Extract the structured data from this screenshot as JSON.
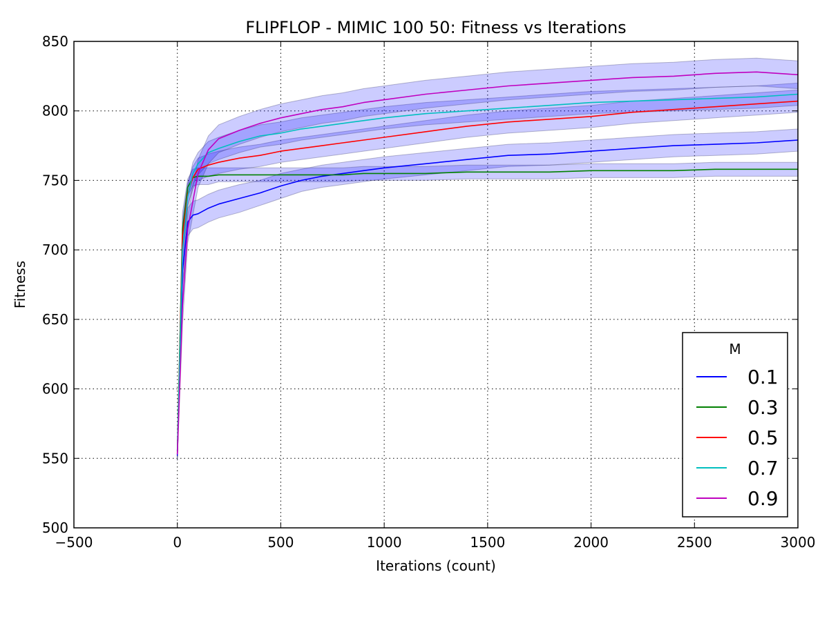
{
  "chart_data": {
    "type": "line",
    "title": "FLIPFLOP - MIMIC 100 50: Fitness vs Iterations",
    "xlabel": "Iterations (count)",
    "ylabel": "Fitness",
    "xlim": [
      -500,
      3000
    ],
    "ylim": [
      500,
      850
    ],
    "xticks": [
      -500,
      0,
      500,
      1000,
      1500,
      2000,
      2500,
      3000
    ],
    "xtick_labels": [
      "−500",
      "0",
      "500",
      "1000",
      "1500",
      "2000",
      "2500",
      "3000"
    ],
    "yticks": [
      500,
      550,
      600,
      650,
      700,
      750,
      800,
      850
    ],
    "ytick_labels": [
      "500",
      "550",
      "600",
      "650",
      "700",
      "750",
      "800",
      "850"
    ],
    "grid": true,
    "legend": {
      "title": "M",
      "position": "lower-right"
    },
    "band_color": "#0000ff",
    "series": [
      {
        "name": "0.1",
        "color": "#0000ff",
        "x": [
          0,
          25,
          50,
          75,
          100,
          150,
          200,
          300,
          400,
          500,
          600,
          700,
          800,
          900,
          1000,
          1200,
          1400,
          1600,
          1800,
          2000,
          2200,
          2400,
          2600,
          2800,
          3000
        ],
        "y": [
          552,
          685,
          720,
          725,
          726,
          730,
          733,
          737,
          741,
          746,
          750,
          753,
          755,
          757,
          759,
          762,
          765,
          768,
          769,
          771,
          773,
          775,
          776,
          777,
          779
        ],
        "band": [
          4,
          10,
          10,
          10,
          10,
          10,
          10,
          10,
          9,
          9,
          8,
          8,
          8,
          8,
          8,
          8,
          8,
          8,
          8,
          8,
          8,
          8,
          8,
          8,
          8
        ]
      },
      {
        "name": "0.3",
        "color": "#008000",
        "x": [
          0,
          25,
          50,
          75,
          100,
          150,
          200,
          300,
          400,
          500,
          600,
          700,
          800,
          900,
          1000,
          1200,
          1400,
          1600,
          1800,
          2000,
          2200,
          2400,
          2600,
          2800,
          3000
        ],
        "y": [
          555,
          715,
          745,
          752,
          753,
          753,
          754,
          754,
          754,
          754,
          754,
          754,
          754,
          755,
          755,
          755,
          756,
          756,
          756,
          757,
          757,
          757,
          758,
          758,
          758
        ],
        "band": [
          4,
          12,
          6,
          6,
          6,
          6,
          5,
          5,
          5,
          5,
          5,
          5,
          5,
          5,
          5,
          5,
          5,
          5,
          5,
          5,
          5,
          5,
          5,
          5,
          5
        ]
      },
      {
        "name": "0.5",
        "color": "#ff0000",
        "x": [
          0,
          25,
          50,
          75,
          100,
          150,
          200,
          300,
          400,
          500,
          600,
          700,
          800,
          900,
          1000,
          1200,
          1400,
          1600,
          1800,
          2000,
          2200,
          2400,
          2600,
          2800,
          3000
        ],
        "y": [
          553,
          710,
          740,
          752,
          758,
          761,
          763,
          766,
          768,
          771,
          773,
          775,
          777,
          779,
          781,
          785,
          789,
          792,
          794,
          796,
          799,
          801,
          803,
          805,
          807
        ],
        "band": [
          4,
          12,
          8,
          8,
          8,
          8,
          8,
          8,
          8,
          8,
          8,
          8,
          8,
          8,
          8,
          8,
          8,
          8,
          8,
          8,
          8,
          8,
          8,
          8,
          8
        ]
      },
      {
        "name": "0.7",
        "color": "#00bfbf",
        "x": [
          0,
          25,
          50,
          75,
          100,
          150,
          200,
          300,
          400,
          500,
          600,
          700,
          800,
          900,
          1000,
          1200,
          1400,
          1600,
          1800,
          2000,
          2200,
          2400,
          2600,
          2800,
          3000
        ],
        "y": [
          555,
          700,
          738,
          755,
          762,
          770,
          773,
          778,
          782,
          784,
          787,
          789,
          791,
          793,
          795,
          798,
          800,
          802,
          804,
          806,
          807,
          808,
          809,
          810,
          812
        ],
        "band": [
          4,
          12,
          8,
          8,
          8,
          8,
          8,
          8,
          8,
          8,
          8,
          8,
          8,
          8,
          8,
          8,
          8,
          8,
          8,
          8,
          8,
          8,
          8,
          8,
          8
        ]
      },
      {
        "name": "0.9",
        "color": "#bf00bf",
        "x": [
          0,
          25,
          50,
          75,
          100,
          150,
          200,
          300,
          400,
          500,
          600,
          700,
          800,
          900,
          1000,
          1200,
          1400,
          1600,
          1800,
          2000,
          2200,
          2400,
          2600,
          2800,
          3000
        ],
        "y": [
          553,
          660,
          715,
          735,
          755,
          772,
          780,
          786,
          791,
          795,
          798,
          801,
          803,
          806,
          808,
          812,
          815,
          818,
          820,
          822,
          824,
          825,
          827,
          828,
          826
        ],
        "band": [
          4,
          14,
          10,
          10,
          10,
          10,
          10,
          10,
          10,
          10,
          10,
          10,
          10,
          10,
          10,
          10,
          10,
          10,
          10,
          10,
          10,
          10,
          10,
          10,
          10
        ]
      }
    ]
  }
}
